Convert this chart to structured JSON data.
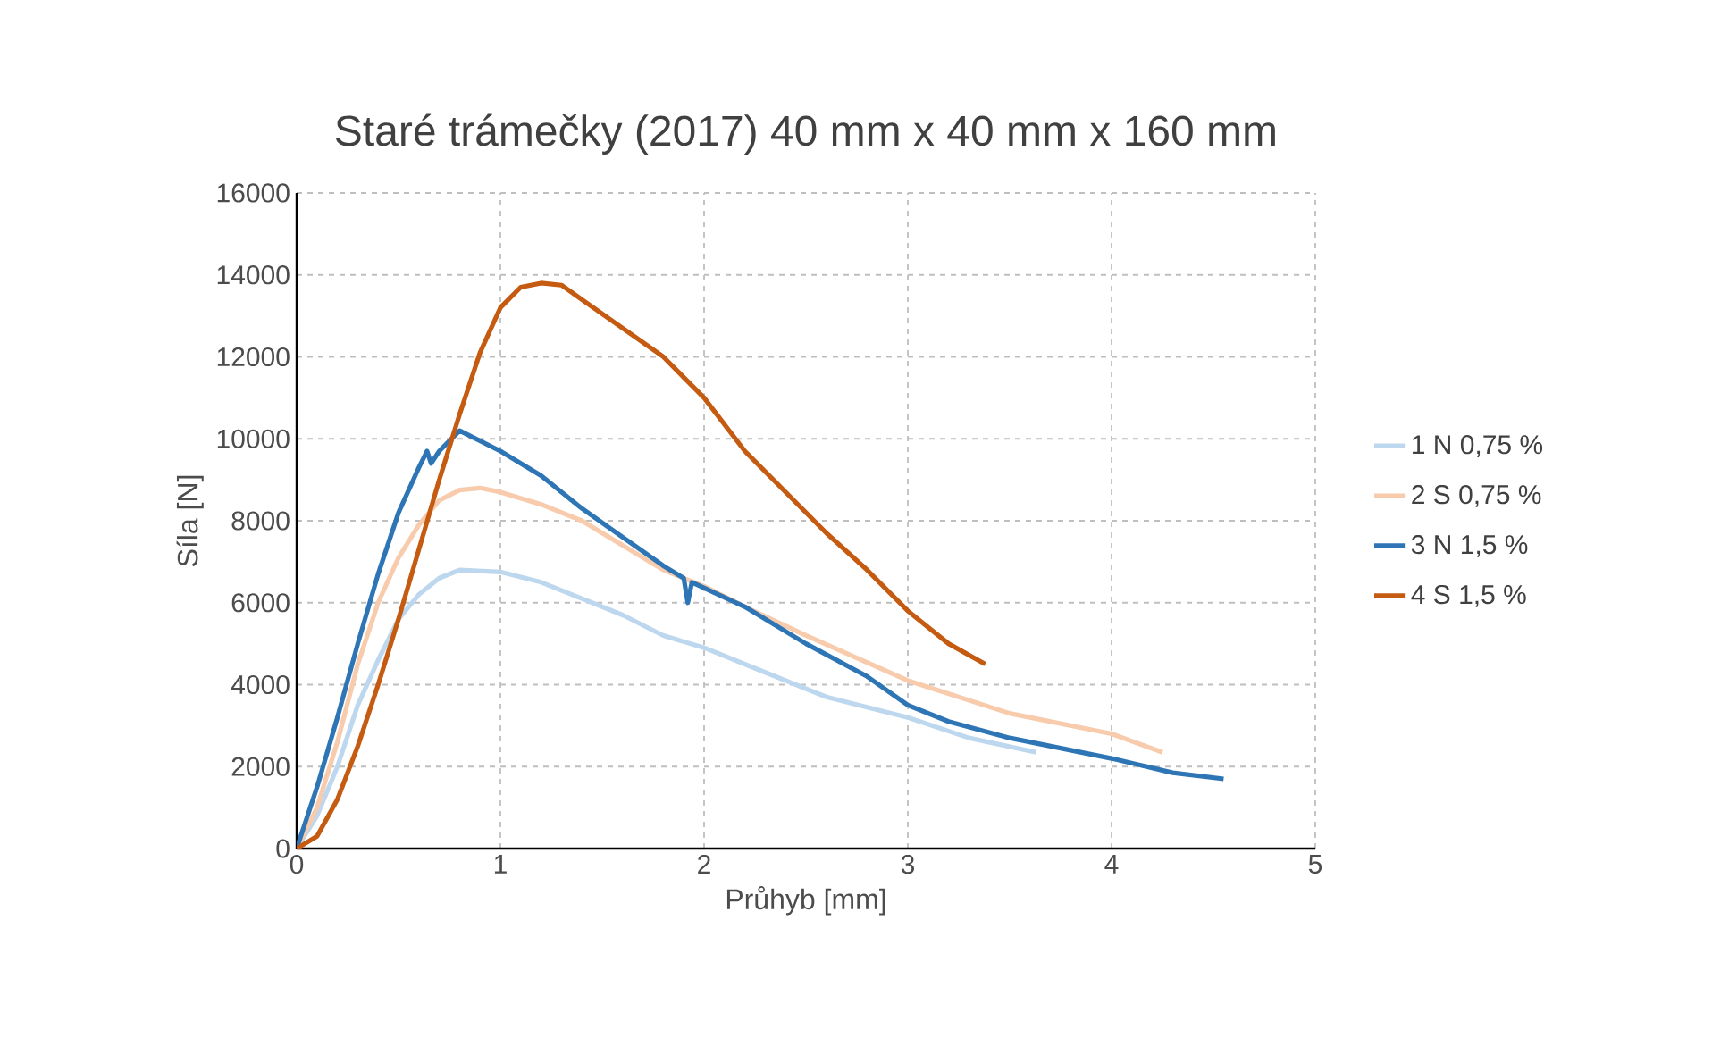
{
  "chart_data": {
    "type": "line",
    "title": "Staré trámečky (2017) 40 mm x 40 mm x 160 mm",
    "xlabel": "Průhyb [mm]",
    "ylabel": "Síla [N]",
    "xlim": [
      0,
      5
    ],
    "ylim": [
      0,
      16000
    ],
    "xticks": [
      0,
      1,
      2,
      3,
      4,
      5
    ],
    "yticks": [
      0,
      2000,
      4000,
      6000,
      8000,
      10000,
      12000,
      14000,
      16000
    ],
    "grid": true,
    "legend": "right",
    "marker": "none",
    "line_style": "solid",
    "series": [
      {
        "name": "1 N 0,75 %",
        "color": "#bdd7ee",
        "x": [
          0,
          0.1,
          0.2,
          0.3,
          0.4,
          0.5,
          0.6,
          0.7,
          0.8,
          1.0,
          1.2,
          1.4,
          1.6,
          1.8,
          2.0,
          2.3,
          2.6,
          3.0,
          3.3,
          3.63
        ],
        "values": [
          0,
          800,
          2000,
          3500,
          4600,
          5600,
          6200,
          6600,
          6800,
          6750,
          6500,
          6100,
          5700,
          5200,
          4900,
          4300,
          3700,
          3200,
          2700,
          2350
        ]
      },
      {
        "name": "2 S 0,75 %",
        "color": "#f8cbad",
        "x": [
          0,
          0.1,
          0.2,
          0.3,
          0.4,
          0.5,
          0.6,
          0.7,
          0.8,
          0.9,
          1.0,
          1.2,
          1.4,
          1.6,
          1.8,
          2.0,
          2.2,
          2.5,
          3.0,
          3.5,
          4.0,
          4.25
        ],
        "values": [
          0,
          1000,
          2600,
          4500,
          6000,
          7100,
          7900,
          8500,
          8750,
          8800,
          8700,
          8400,
          8000,
          7400,
          6800,
          6400,
          5900,
          5200,
          4100,
          3300,
          2800,
          2350
        ]
      },
      {
        "name": "3 N 1,5 %",
        "color": "#2e75b6",
        "x": [
          0,
          0.1,
          0.2,
          0.3,
          0.4,
          0.5,
          0.6,
          0.64,
          0.66,
          0.7,
          0.8,
          1.0,
          1.2,
          1.4,
          1.6,
          1.8,
          1.9,
          1.92,
          1.94,
          2.2,
          2.5,
          2.8,
          3.0,
          3.2,
          3.5,
          4.0,
          4.3,
          4.55
        ],
        "values": [
          0,
          1500,
          3200,
          5000,
          6700,
          8200,
          9300,
          9700,
          9400,
          9700,
          10200,
          9700,
          9100,
          8300,
          7600,
          6900,
          6600,
          6000,
          6500,
          5900,
          5000,
          4200,
          3500,
          3100,
          2700,
          2200,
          1850,
          1700
        ]
      },
      {
        "name": "4 S 1,5 %",
        "color": "#c55a11",
        "x": [
          0,
          0.1,
          0.2,
          0.3,
          0.4,
          0.5,
          0.6,
          0.7,
          0.8,
          0.9,
          1.0,
          1.1,
          1.2,
          1.3,
          1.4,
          1.6,
          1.8,
          2.0,
          2.2,
          2.4,
          2.6,
          2.8,
          3.0,
          3.2,
          3.38
        ],
        "values": [
          0,
          300,
          1200,
          2500,
          4000,
          5600,
          7300,
          9000,
          10600,
          12100,
          13200,
          13700,
          13800,
          13750,
          13400,
          12700,
          12000,
          11000,
          9700,
          8700,
          7700,
          6800,
          5800,
          5000,
          4500
        ]
      }
    ]
  }
}
